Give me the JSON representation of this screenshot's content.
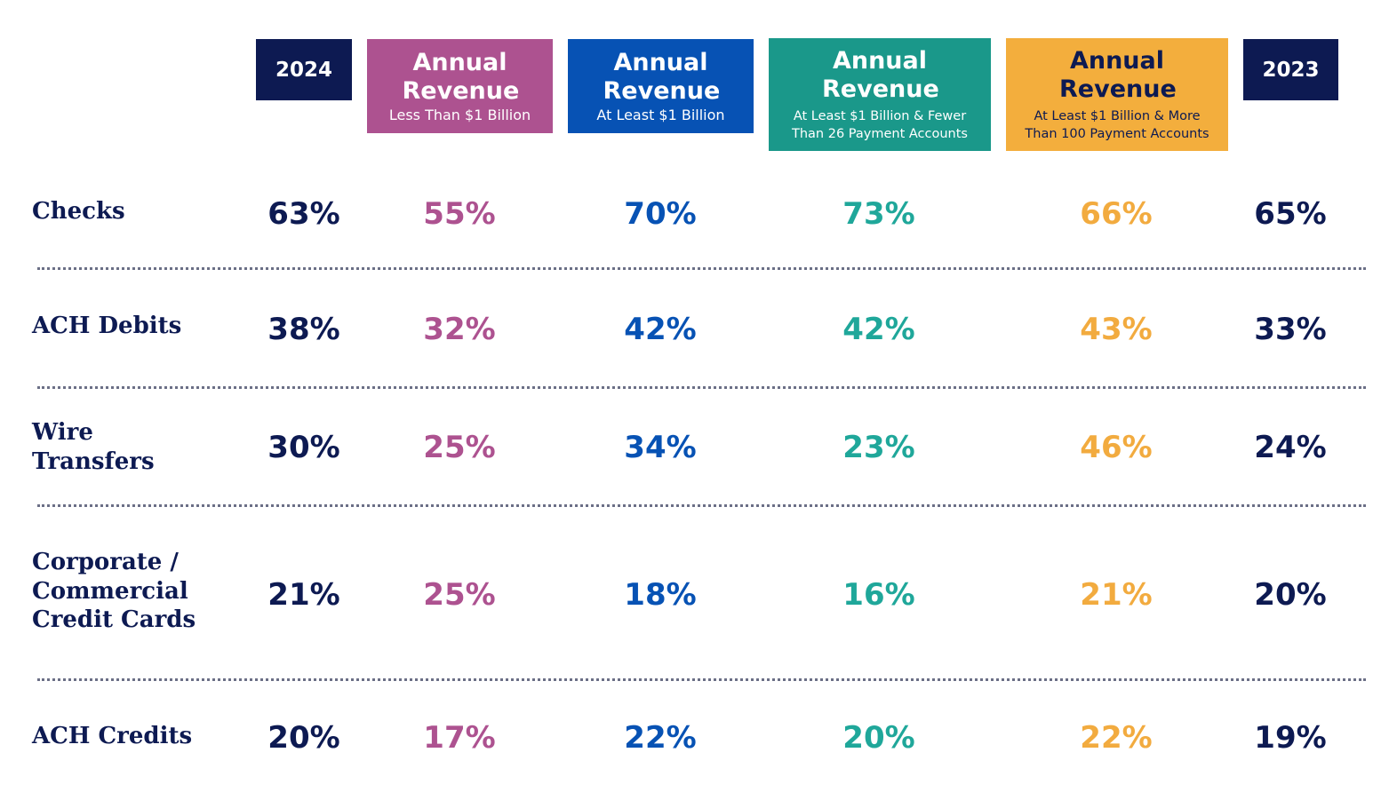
{
  "chart_data": {
    "type": "table",
    "title": "",
    "columns": [
      {
        "key": "2024",
        "title": "2024",
        "subtitle": "",
        "color": "#0d1a52",
        "header_bg": "#0d1a52"
      },
      {
        "key": "lt1b",
        "title": "Annual Revenue",
        "subtitle": "Less Than $1 Billion",
        "color": "#ad5290",
        "header_bg": "#ad5290"
      },
      {
        "key": "ge1b",
        "title": "Annual Revenue",
        "subtitle": "At Least $1 Billion",
        "color": "#0752b4",
        "header_bg": "#0752b4"
      },
      {
        "key": "ge1b_lt26",
        "title": "Annual Revenue",
        "subtitle": "At Least $1 Billion & Fewer\nThan 26 Payment Accounts",
        "color": "#1fa79a",
        "header_bg": "#1a988a"
      },
      {
        "key": "ge1b_gt100",
        "title": "Annual Revenue",
        "subtitle": "At Least $1 Billion & More\nThan 100 Payment Accounts",
        "color": "#f2ab3f",
        "header_bg": "#f3ae3d"
      },
      {
        "key": "2023",
        "title": "2023",
        "subtitle": "",
        "color": "#0d1a52",
        "header_bg": "#0d1a52"
      }
    ],
    "rows": [
      {
        "label": "Checks",
        "values": [
          "63%",
          "55%",
          "70%",
          "73%",
          "66%",
          "65%"
        ]
      },
      {
        "label": "ACH Debits",
        "values": [
          "38%",
          "32%",
          "42%",
          "42%",
          "43%",
          "33%"
        ]
      },
      {
        "label": "Wire\nTransfers",
        "values": [
          "30%",
          "25%",
          "34%",
          "23%",
          "46%",
          "24%"
        ]
      },
      {
        "label": "Corporate /\nCommercial\nCredit Cards",
        "values": [
          "21%",
          "25%",
          "18%",
          "16%",
          "21%",
          "20%"
        ]
      },
      {
        "label": "ACH Credits",
        "values": [
          "20%",
          "17%",
          "22%",
          "20%",
          "22%",
          "19%"
        ]
      }
    ],
    "text_color": "#0d1a52",
    "divider_color": "#6b6f86"
  }
}
